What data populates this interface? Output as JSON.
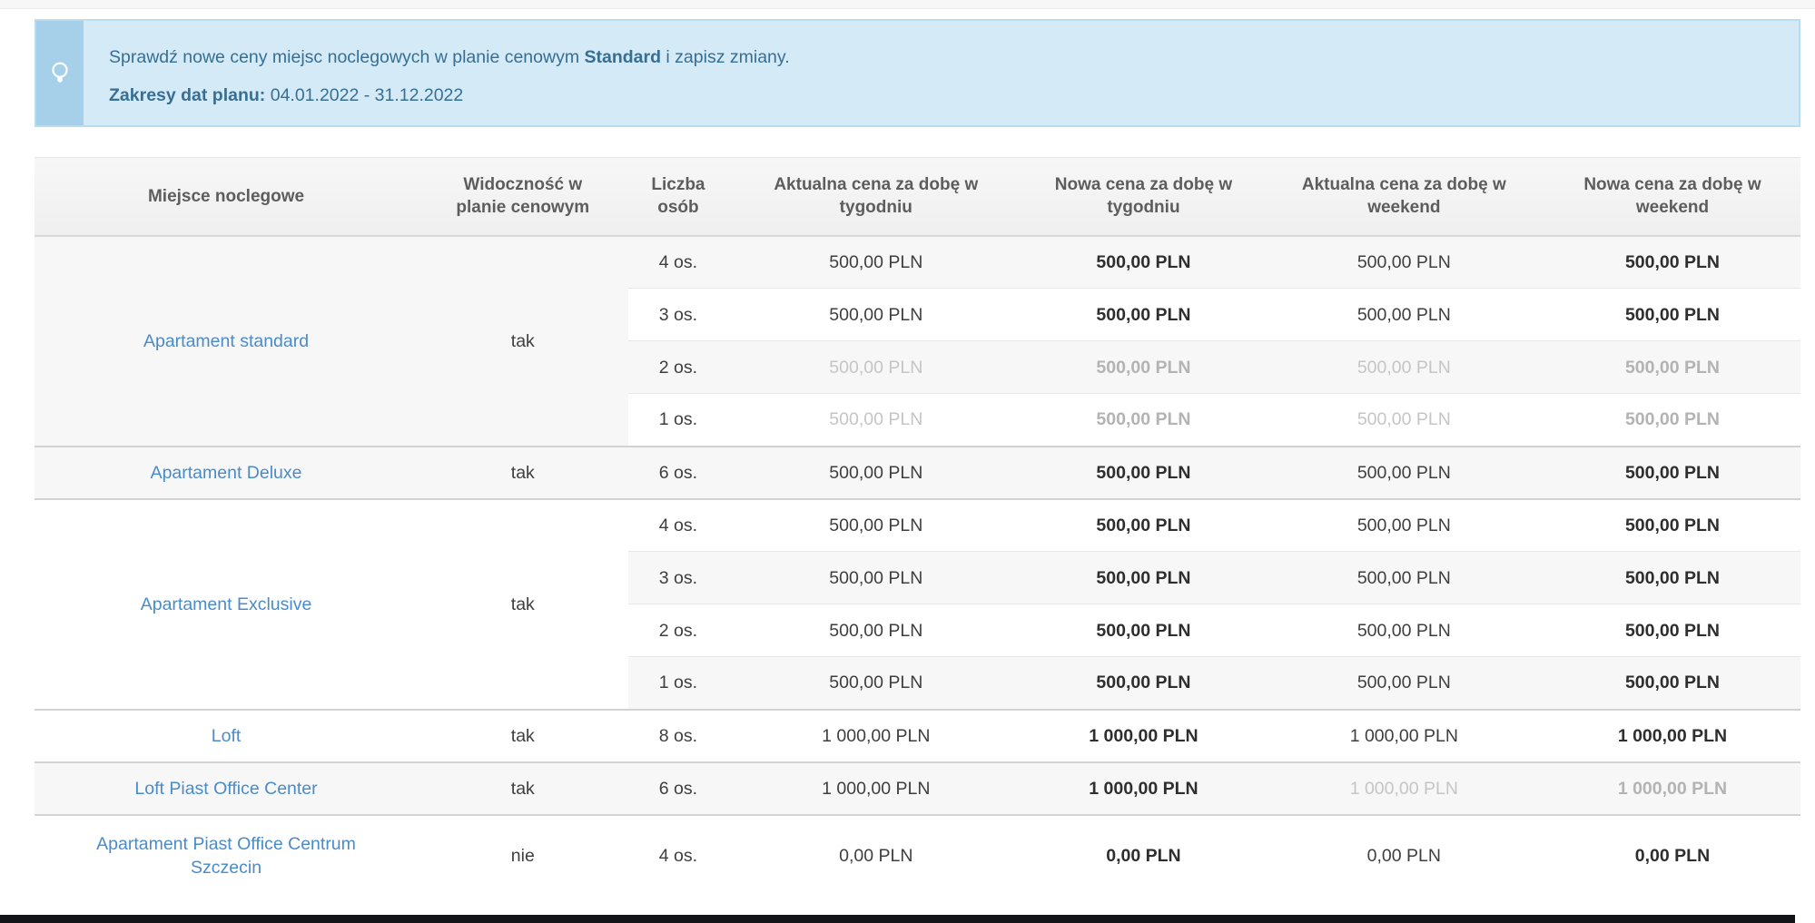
{
  "banner": {
    "icon": "lightbulb-icon",
    "line1_pre": "Sprawdź nowe ceny miejsc noclegowych w planie cenowym ",
    "line1_bold": "Standard",
    "line1_post": " i zapisz zmiany.",
    "line2_label": "Zakresy dat planu:",
    "line2_value": " 04.01.2022 - 31.12.2022"
  },
  "table": {
    "headers": [
      "Miejsce noclegowe",
      "Widoczność w planie cenowym",
      "Liczba osób",
      "Aktualna cena za dobę w tygodniu",
      "Nowa cena za dobę w tygodniu",
      "Aktualna cena za dobę w weekend",
      "Nowa cena za dobę w weekend"
    ],
    "groups": [
      {
        "name": "Apartament standard",
        "visible": "tak",
        "variants": [
          {
            "persons": "4 os.",
            "prices": [
              {
                "v": "500,00 PLN",
                "muted": false
              },
              {
                "v": "500,00 PLN",
                "muted": false
              },
              {
                "v": "500,00 PLN",
                "muted": false
              },
              {
                "v": "500,00 PLN",
                "muted": false
              }
            ]
          },
          {
            "persons": "3 os.",
            "prices": [
              {
                "v": "500,00 PLN",
                "muted": false
              },
              {
                "v": "500,00 PLN",
                "muted": false
              },
              {
                "v": "500,00 PLN",
                "muted": false
              },
              {
                "v": "500,00 PLN",
                "muted": false
              }
            ]
          },
          {
            "persons": "2 os.",
            "prices": [
              {
                "v": "500,00 PLN",
                "muted": true
              },
              {
                "v": "500,00 PLN",
                "muted": true
              },
              {
                "v": "500,00 PLN",
                "muted": true
              },
              {
                "v": "500,00 PLN",
                "muted": true
              }
            ]
          },
          {
            "persons": "1 os.",
            "prices": [
              {
                "v": "500,00 PLN",
                "muted": true
              },
              {
                "v": "500,00 PLN",
                "muted": true
              },
              {
                "v": "500,00 PLN",
                "muted": true
              },
              {
                "v": "500,00 PLN",
                "muted": true
              }
            ]
          }
        ]
      },
      {
        "name": "Apartament Deluxe",
        "visible": "tak",
        "variants": [
          {
            "persons": "6 os.",
            "prices": [
              {
                "v": "500,00 PLN",
                "muted": false
              },
              {
                "v": "500,00 PLN",
                "muted": false
              },
              {
                "v": "500,00 PLN",
                "muted": false
              },
              {
                "v": "500,00 PLN",
                "muted": false
              }
            ]
          }
        ]
      },
      {
        "name": "Apartament Exclusive",
        "visible": "tak",
        "variants": [
          {
            "persons": "4 os.",
            "prices": [
              {
                "v": "500,00 PLN",
                "muted": false
              },
              {
                "v": "500,00 PLN",
                "muted": false
              },
              {
                "v": "500,00 PLN",
                "muted": false
              },
              {
                "v": "500,00 PLN",
                "muted": false
              }
            ]
          },
          {
            "persons": "3 os.",
            "prices": [
              {
                "v": "500,00 PLN",
                "muted": false
              },
              {
                "v": "500,00 PLN",
                "muted": false
              },
              {
                "v": "500,00 PLN",
                "muted": false
              },
              {
                "v": "500,00 PLN",
                "muted": false
              }
            ]
          },
          {
            "persons": "2 os.",
            "prices": [
              {
                "v": "500,00 PLN",
                "muted": false
              },
              {
                "v": "500,00 PLN",
                "muted": false
              },
              {
                "v": "500,00 PLN",
                "muted": false
              },
              {
                "v": "500,00 PLN",
                "muted": false
              }
            ]
          },
          {
            "persons": "1 os.",
            "prices": [
              {
                "v": "500,00 PLN",
                "muted": false
              },
              {
                "v": "500,00 PLN",
                "muted": false
              },
              {
                "v": "500,00 PLN",
                "muted": false
              },
              {
                "v": "500,00 PLN",
                "muted": false
              }
            ]
          }
        ]
      },
      {
        "name": "Loft",
        "visible": "tak",
        "variants": [
          {
            "persons": "8 os.",
            "prices": [
              {
                "v": "1 000,00 PLN",
                "muted": false
              },
              {
                "v": "1 000,00 PLN",
                "muted": false
              },
              {
                "v": "1 000,00 PLN",
                "muted": false
              },
              {
                "v": "1 000,00 PLN",
                "muted": false
              }
            ]
          }
        ]
      },
      {
        "name": "Loft Piast Office Center",
        "visible": "tak",
        "variants": [
          {
            "persons": "6 os.",
            "prices": [
              {
                "v": "1 000,00 PLN",
                "muted": false
              },
              {
                "v": "1 000,00 PLN",
                "muted": false
              },
              {
                "v": "1 000,00 PLN",
                "muted": true
              },
              {
                "v": "1 000,00 PLN",
                "muted": true
              }
            ]
          }
        ]
      },
      {
        "name": "Apartament Piast Office Centrum Szczecin",
        "visible": "nie",
        "tall": true,
        "variants": [
          {
            "persons": "4 os.",
            "prices": [
              {
                "v": "0,00 PLN",
                "muted": false
              },
              {
                "v": "0,00 PLN",
                "muted": false
              },
              {
                "v": "0,00 PLN",
                "muted": false
              },
              {
                "v": "0,00 PLN",
                "muted": false
              }
            ]
          }
        ]
      }
    ]
  },
  "colors": {
    "link": "#4a8bc9",
    "banner_bg": "#d5eaf7",
    "banner_strip": "#a6d0e9",
    "banner_border": "#b9ddf0",
    "banner_text": "#366f93",
    "row_alt": "#f7f7f7",
    "muted": "#c5c5c5",
    "muted_bold": "#b3b3b3"
  }
}
